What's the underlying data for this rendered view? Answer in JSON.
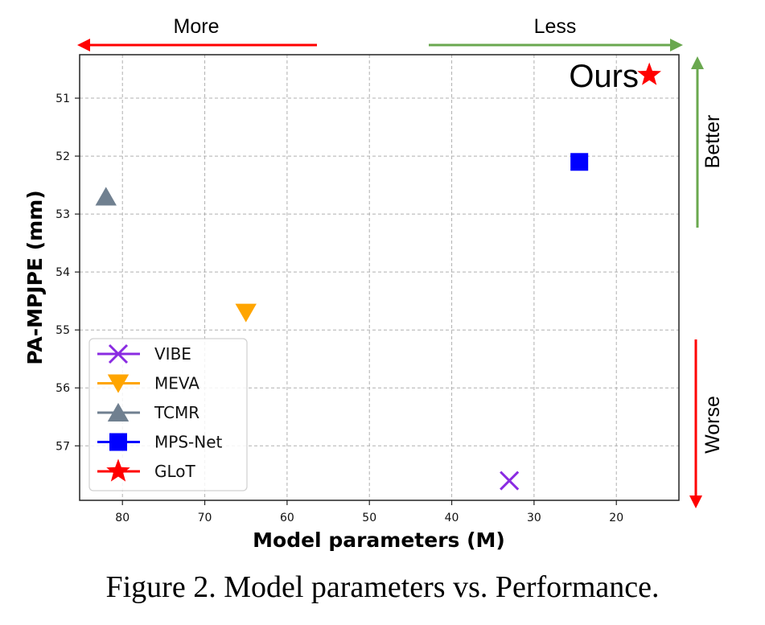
{
  "chart_data": {
    "type": "scatter",
    "title": "",
    "xlabel": "Model parameters (M)",
    "ylabel": "PA-MPJPE (mm)",
    "xlim": [
      85.2,
      12.4
    ],
    "ylim": [
      57.94,
      50.25
    ],
    "x_inverted": true,
    "y_inverted": true,
    "xticks": [
      80,
      70,
      60,
      50,
      40,
      30,
      20
    ],
    "yticks": [
      51,
      52,
      53,
      54,
      55,
      56,
      57
    ],
    "grid": true,
    "legend_position": "lower-left",
    "series": [
      {
        "name": "VIBE",
        "marker": "x",
        "color": "#8a2be2",
        "x": 33,
        "y": 57.6
      },
      {
        "name": "MEVA",
        "marker": "triangle-down",
        "color": "#ffa500",
        "x": 65,
        "y": 54.7
      },
      {
        "name": "TCMR",
        "marker": "triangle-up",
        "color": "#708090",
        "x": 82,
        "y": 52.7
      },
      {
        "name": "MPS-Net",
        "marker": "square",
        "color": "#0000ff",
        "x": 24.5,
        "y": 52.1
      },
      {
        "name": "GLoT",
        "marker": "star",
        "color": "#ff0000",
        "x": 16,
        "y": 50.6
      }
    ],
    "annotations": {
      "ours_label": "Ours",
      "more_label": "More",
      "less_label": "Less",
      "better_label": "Better",
      "worse_label": "Worse",
      "more_color": "#ff0000",
      "less_color": "#6aa84f",
      "better_color": "#6aa84f",
      "worse_color": "#ff0000"
    }
  },
  "caption": "Figure 2. Model parameters vs. Performance."
}
